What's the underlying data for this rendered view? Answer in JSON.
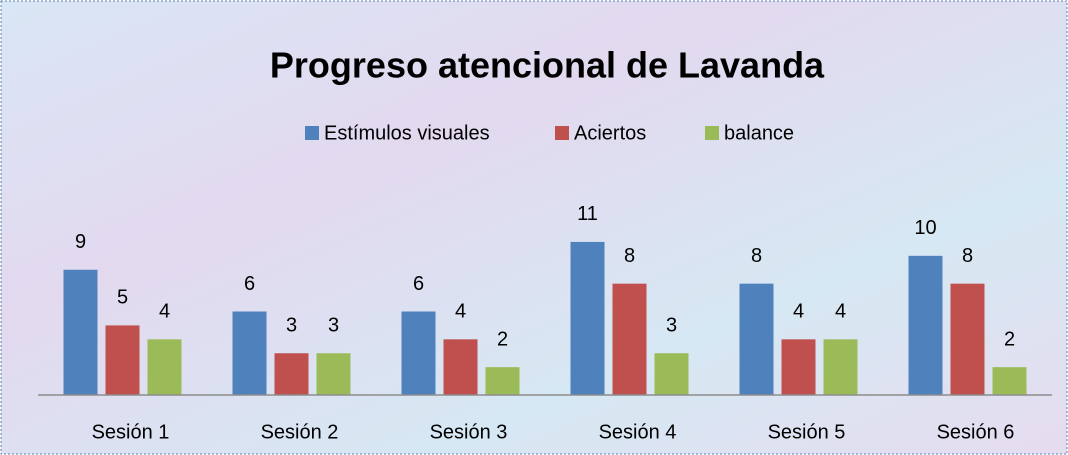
{
  "chart_data": {
    "type": "bar",
    "title": "Progreso atencional de Lavanda",
    "categories": [
      "Sesión 1",
      "Sesión 2",
      "Sesión 3",
      "Sesión 4",
      "Sesión 5",
      "Sesión 6"
    ],
    "series": [
      {
        "name": "Estímulos visuales",
        "color": "#4f81bd",
        "values": [
          9,
          6,
          6,
          11,
          8,
          10
        ]
      },
      {
        "name": "Aciertos",
        "color": "#c0504d",
        "values": [
          5,
          3,
          4,
          8,
          4,
          8
        ]
      },
      {
        "name": "balance",
        "color": "#9bbb59",
        "values": [
          4,
          3,
          2,
          3,
          4,
          2
        ]
      }
    ],
    "ylim": [
      0,
      12
    ],
    "legend": "top",
    "data_labels": true
  }
}
